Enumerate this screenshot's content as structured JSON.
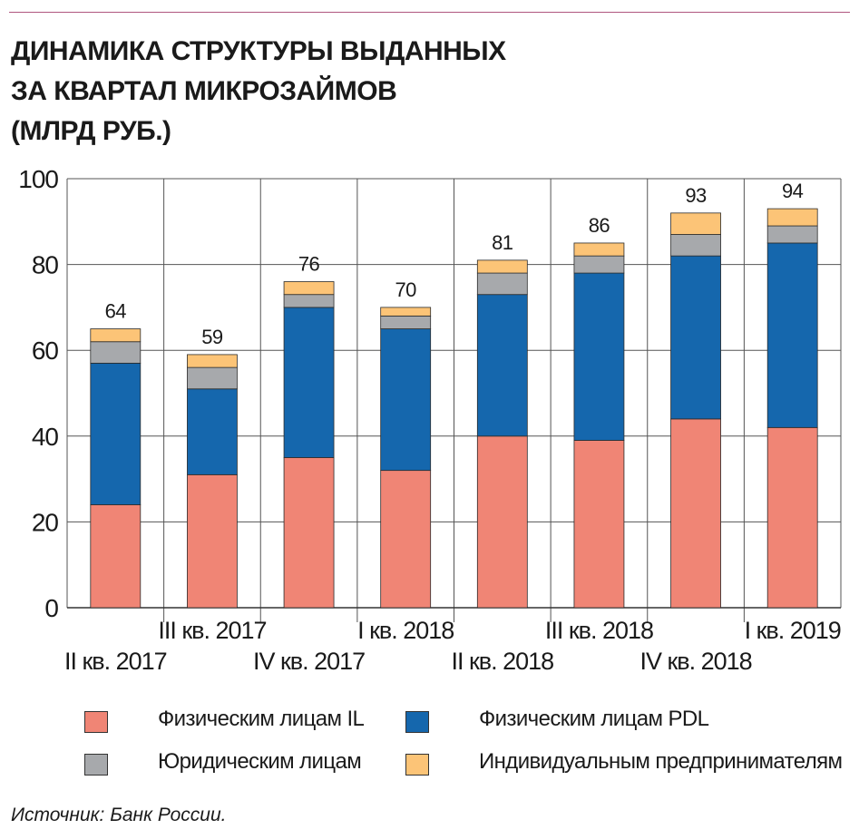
{
  "title_lines": [
    "ДИНАМИКА СТРУКТУРЫ ВЫДАННЫХ",
    "ЗА КВАРТАЛ МИКРОЗАЙМОВ",
    "(МЛРД РУБ.)"
  ],
  "source": "Источник: Банк России.",
  "colors": {
    "il": "#f08575",
    "pdl": "#1567ad",
    "legal": "#a7a9ac",
    "ip": "#fcc477",
    "grid": "#555555",
    "accent_rule": "#b0567f"
  },
  "legend": [
    {
      "label": "Физическим лицам IL",
      "color_key": "il"
    },
    {
      "label": "Физическим лицам PDL",
      "color_key": "pdl"
    },
    {
      "label": "Юридическим лицам",
      "color_key": "legal"
    },
    {
      "label": "Индивидуальным предпринимателям",
      "color_key": "ip"
    }
  ],
  "chart_data": {
    "type": "bar",
    "stacked": true,
    "categories": [
      "II кв. 2017",
      "III кв. 2017",
      "IV кв. 2017",
      "I кв. 2018",
      "II кв. 2018",
      "III кв. 2018",
      "IV кв. 2018",
      "I кв. 2019"
    ],
    "series": [
      {
        "name": "Физическим лицам IL",
        "color_key": "il",
        "values": [
          24,
          31,
          35,
          32,
          40,
          39,
          44,
          42
        ]
      },
      {
        "name": "Физическим лицам PDL",
        "color_key": "pdl",
        "values": [
          33,
          20,
          35,
          33,
          33,
          39,
          38,
          43
        ]
      },
      {
        "name": "Юридическим лицам",
        "color_key": "legal",
        "values": [
          5,
          5,
          3,
          3,
          5,
          4,
          5,
          4
        ]
      },
      {
        "name": "Индивидуальным предпринимателям",
        "color_key": "ip",
        "values": [
          3,
          3,
          3,
          2,
          3,
          3,
          5,
          4
        ]
      }
    ],
    "totals": [
      64,
      59,
      76,
      70,
      81,
      86,
      93,
      94
    ],
    "ylim": [
      0,
      100
    ],
    "yticks": [
      0,
      20,
      40,
      60,
      80,
      100
    ],
    "grid": true,
    "legend_position": "bottom"
  }
}
